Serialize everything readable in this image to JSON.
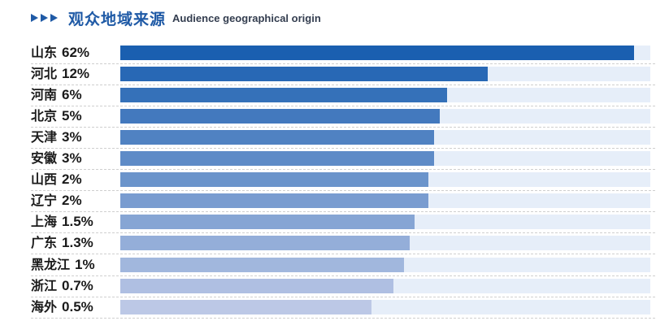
{
  "header": {
    "title_cn": "观众地域来源",
    "title_en": "Audience geographical origin",
    "icon": "triple-chevron-right-icon"
  },
  "colors": {
    "title": "#1f5aa6",
    "track": "#e6eef9",
    "bar_top": "#1a5fb0",
    "bar_bottom": "#bcc8e6"
  },
  "chart_data": {
    "type": "bar",
    "orientation": "horizontal",
    "categories": [
      "山东",
      "河北",
      "河南",
      "北京",
      "天津",
      "安徽",
      "山西",
      "辽宁",
      "上海",
      "广东",
      "黑龙江",
      "浙江",
      "海外"
    ],
    "value_labels": [
      "62%",
      "12%",
      "6%",
      "5%",
      "3%",
      "3%",
      "2%",
      "2%",
      "1.5%",
      "1.3%",
      "1%",
      "0.7%",
      "0.5%"
    ],
    "values": [
      62,
      12,
      6,
      5,
      3,
      3,
      2,
      2,
      1.5,
      1.3,
      1,
      0.7,
      0.5
    ],
    "display_fraction": [
      0.97,
      0.694,
      0.616,
      0.603,
      0.592,
      0.592,
      0.581,
      0.581,
      0.555,
      0.546,
      0.536,
      0.515,
      0.474
    ],
    "title": "观众地域来源",
    "grid": false,
    "legend": "none"
  }
}
